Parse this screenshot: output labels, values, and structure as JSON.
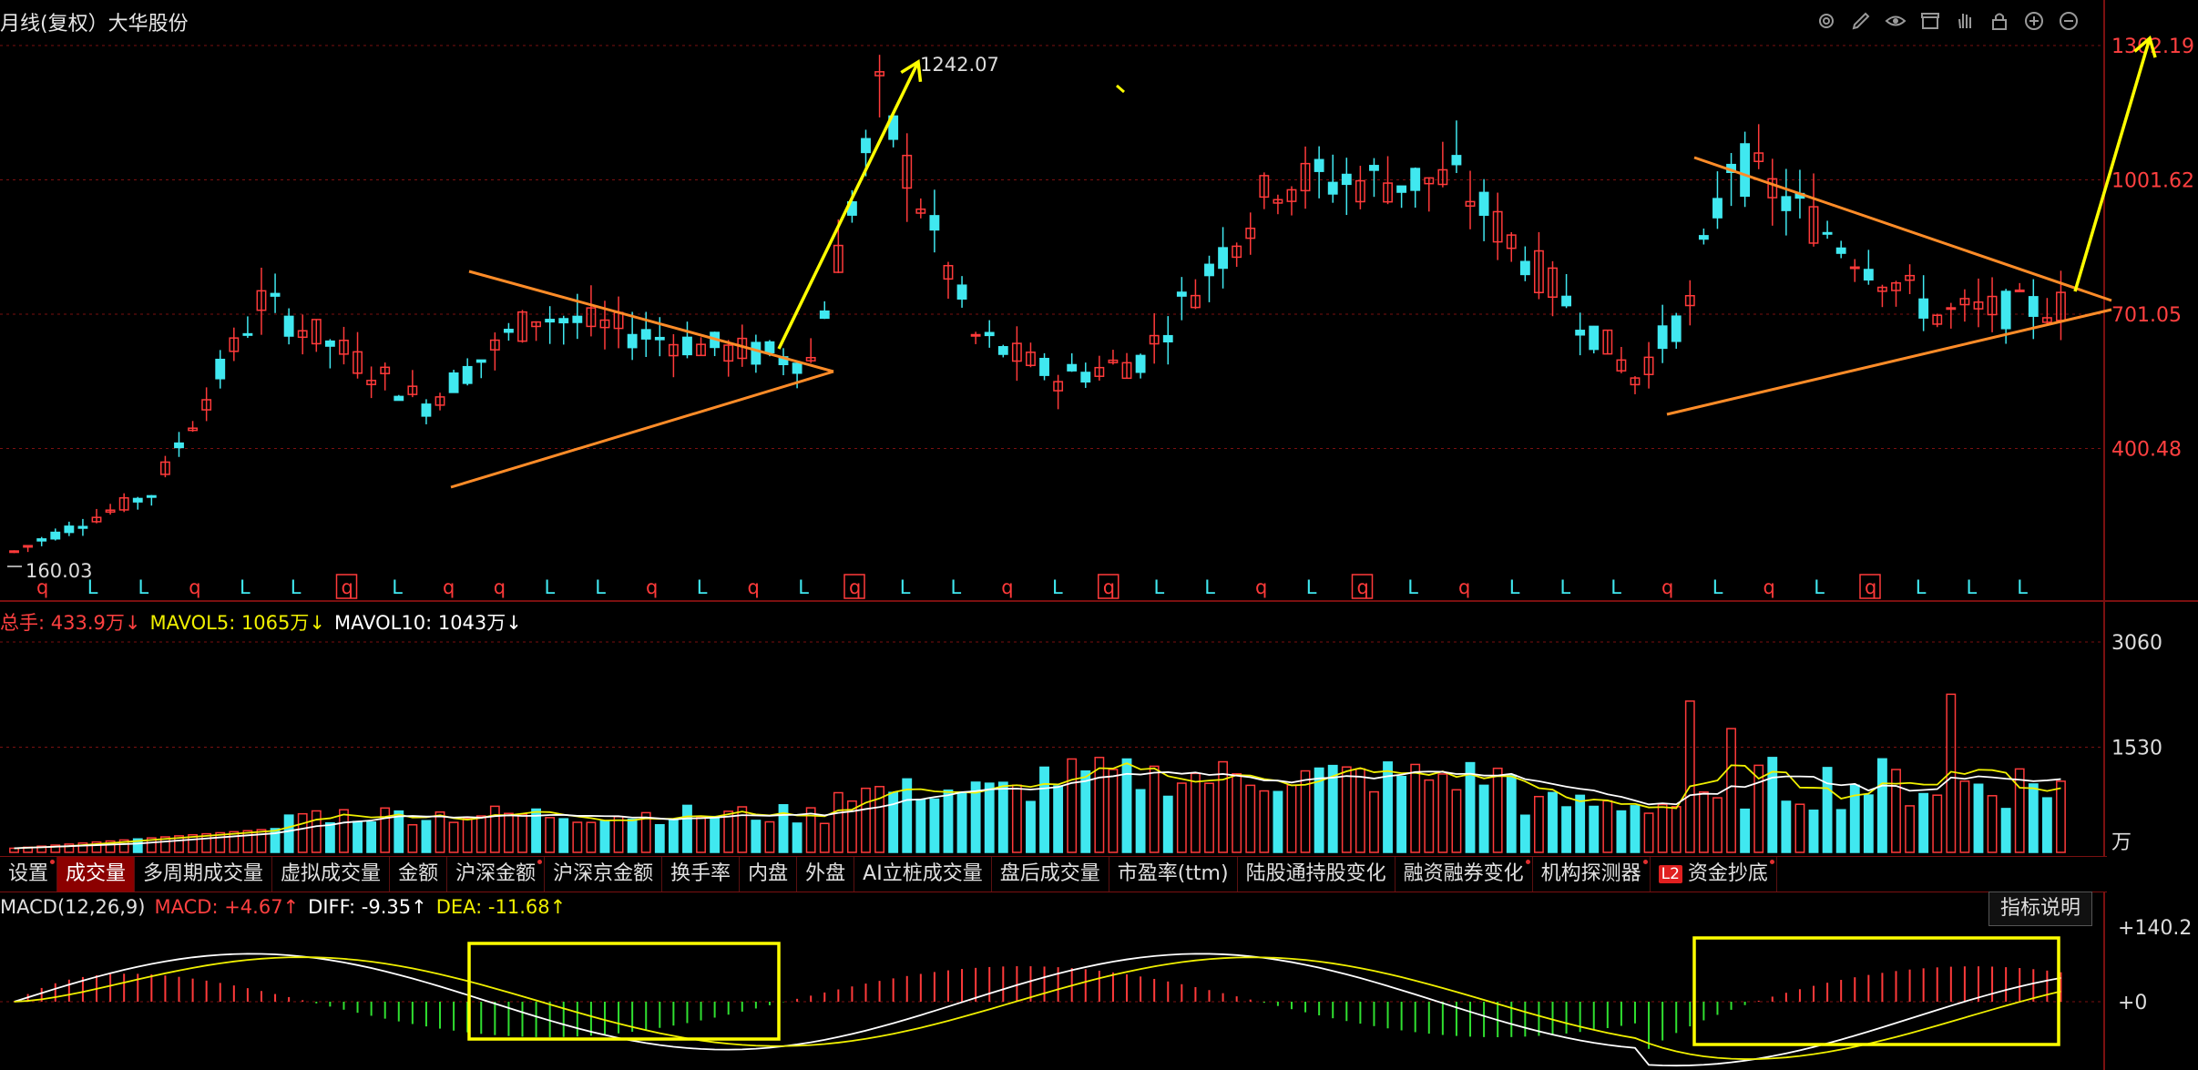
{
  "header": {
    "title": "月线(复权）大华股份",
    "tools": [
      "gear-icon",
      "pen-icon",
      "eye-icon",
      "box-icon",
      "hand-icon",
      "lock-icon",
      "zoom-in-icon",
      "zoom-out-icon"
    ]
  },
  "volume_legend": {
    "total": "总手: 433.9万↓",
    "mavol5": "MAVOL5: 1065万↓",
    "mavol10": "MAVOL10: 1043万↓"
  },
  "macd_legend": {
    "name": "MACD(12,26,9)",
    "macd": "MACD: +4.67↑",
    "diff": "DIFF: -9.35↑",
    "dea": "DEA: -11.68↑"
  },
  "tabs": [
    {
      "label": "设置",
      "dot": true
    },
    {
      "label": "成交量",
      "dot": false,
      "active": true
    },
    {
      "label": "多周期成交量",
      "dot": false
    },
    {
      "label": "虚拟成交量",
      "dot": false
    },
    {
      "label": "金额",
      "dot": false
    },
    {
      "label": "沪深金额",
      "dot": true
    },
    {
      "label": "沪深京金额",
      "dot": false
    },
    {
      "label": "换手率",
      "dot": false
    },
    {
      "label": "内盘",
      "dot": false
    },
    {
      "label": "外盘",
      "dot": false
    },
    {
      "label": "AI立桩成交量",
      "dot": false
    },
    {
      "label": "盘后成交量",
      "dot": false
    },
    {
      "label": "市盈率(ttm)",
      "dot": false
    },
    {
      "label": "陆股通持股变化",
      "dot": false
    },
    {
      "label": "融资融券变化",
      "dot": true
    },
    {
      "label": "机构探测器",
      "dot": true
    },
    {
      "label": "资金抄底",
      "dot": true,
      "badge": "L2"
    }
  ],
  "explain_button": "指标说明",
  "colors": {
    "up": "#ff3a3a",
    "down": "#40e8f0",
    "ma5": "#f0f000",
    "ma10": "#ffffff",
    "grid": "#7a1010",
    "trend": "#ff8c28",
    "annotation": "#ffff00"
  },
  "chart_data": [
    {
      "type": "candlestick",
      "panel": "price",
      "y_ticks": [
        "1302.19",
        "1001.62",
        "701.05",
        "400.48"
      ],
      "ylim": [
        100,
        1302.19
      ],
      "high_label": "1242.07",
      "low_label": "160.03",
      "signal_markers": "q L L q L L q L q q L L q L q L q L L q L q L L q L q L q L L L q L q L q L L L"
    },
    {
      "type": "bar",
      "panel": "volume",
      "y_ticks": [
        "3060",
        "1530"
      ],
      "unit": "万",
      "ylim": [
        0,
        3060
      ]
    },
    {
      "type": "bar",
      "panel": "macd",
      "y_ticks": [
        "+140.2",
        "+0"
      ],
      "ylim": [
        -140,
        140.2
      ]
    }
  ]
}
